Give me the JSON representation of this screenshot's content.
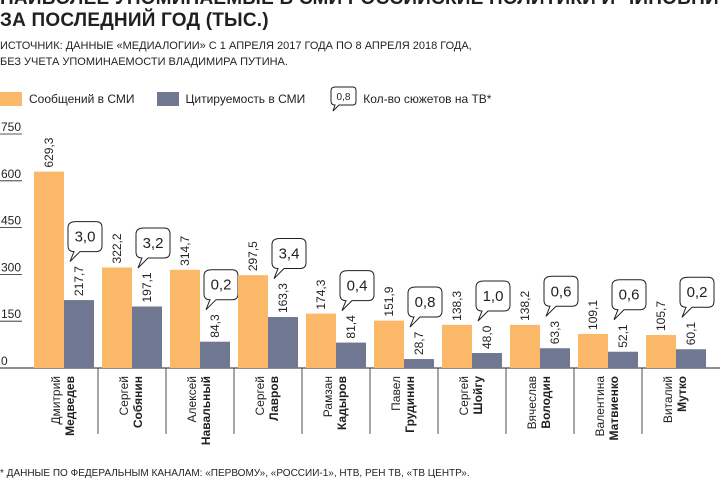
{
  "title_lines": [
    "НАИБОЛЕЕ УПОМИНАЕМЫЕ В СМИ РОССИЙСКИЕ ПОЛИТИКИ И ЧИНОВНИКИ",
    "ЗА ПОСЛЕДНИЙ ГОД (ТЫС.)"
  ],
  "subtitle_lines": [
    "ИСТОЧНИК: ДАННЫЕ «МЕДИАЛОГИИ» С 1 АПРЕЛЯ 2017 ГОДА ПО 8 АПРЕЛЯ 2018 ГОДА,",
    "БЕЗ УЧЕТА УПОМИНАЕМОСТИ ВЛАДИМИРА ПУТИНА."
  ],
  "legend": {
    "s1": "Сообщений в СМИ",
    "s2": "Цитируемость в СМИ",
    "bubble_sample": "0,8",
    "s3": "Кол-во сюжетов на ТВ*"
  },
  "footnote": "* ДАННЫЕ ПО ФЕДЕРАЛЬНЫМ КАНАЛАМ: «ПЕРВОМУ», «РОССИИ-1», НТВ, РЕН ТВ, «ТВ ЦЕНТР».",
  "colors": {
    "s1": "#fbb869",
    "s2": "#6f7791",
    "bubble_border": "#231f20"
  },
  "chart_data": {
    "type": "bar",
    "ylim": [
      0,
      750
    ],
    "yticks": [
      "750",
      "600",
      "450",
      "300",
      "150",
      "0"
    ],
    "ytick_values": [
      750,
      600,
      450,
      300,
      150,
      0
    ],
    "categories": [
      {
        "first": "Дмитрий",
        "last": "Медведев"
      },
      {
        "first": "Сергей",
        "last": "Собянин"
      },
      {
        "first": "Алексей",
        "last": "Навальный"
      },
      {
        "first": "Сергей",
        "last": "Лавров"
      },
      {
        "first": "Рамзан",
        "last": "Кадыров"
      },
      {
        "first": "Павел",
        "last": "Грудинин"
      },
      {
        "first": "Сергей",
        "last": "Шойгу"
      },
      {
        "first": "Вячеслав",
        "last": "Володин"
      },
      {
        "first": "Валентина",
        "last": "Матвиенко"
      },
      {
        "first": "Виталий",
        "last": "Мутко"
      }
    ],
    "series": [
      {
        "name": "Сообщений в СМИ",
        "values": [
          629.3,
          322.2,
          314.7,
          297.5,
          174.3,
          151.9,
          138.3,
          138.2,
          109.1,
          105.7
        ],
        "labels": [
          "629,3",
          "322,2",
          "314,7",
          "297,5",
          "174,3",
          "151,9",
          "138,3",
          "138,2",
          "109,1",
          "105,7"
        ]
      },
      {
        "name": "Цитируемость в СМИ",
        "values": [
          217.7,
          197.1,
          84.3,
          163.3,
          81.4,
          28.7,
          48.0,
          63.3,
          52.1,
          60.1
        ],
        "labels": [
          "217,7",
          "197,1",
          "84,3",
          "163,3",
          "81,4",
          "28,7",
          "48,0",
          "63,3",
          "52,1",
          "60,1"
        ]
      },
      {
        "name": "Кол-во сюжетов на ТВ*",
        "values": [
          3.0,
          3.2,
          0.2,
          3.4,
          0.4,
          0.8,
          1.0,
          0.6,
          0.6,
          0.2
        ],
        "labels": [
          "3,0",
          "3,2",
          "0,2",
          "3,4",
          "0,4",
          "0,8",
          "1,0",
          "0,6",
          "0,6",
          "0,2"
        ]
      }
    ]
  }
}
